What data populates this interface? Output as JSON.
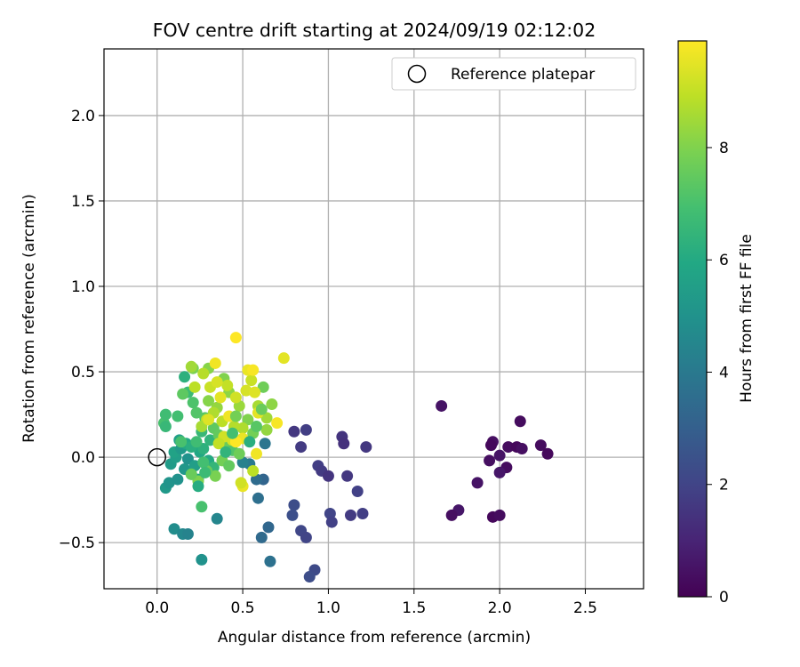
{
  "chart_data": {
    "type": "scatter",
    "title": "FOV centre drift starting at 2024/09/19 02:12:02",
    "xlabel": "Angular distance from reference (arcmin)",
    "ylabel": "Rotation from reference (arcmin)",
    "xlim": [
      -0.31,
      2.84
    ],
    "ylim": [
      -0.77,
      2.39
    ],
    "xticks": [
      0.0,
      0.5,
      1.0,
      1.5,
      2.0,
      2.5
    ],
    "xtick_labels": [
      "0.0",
      "0.5",
      "1.0",
      "1.5",
      "2.0",
      "2.5"
    ],
    "yticks": [
      -0.5,
      0.0,
      0.5,
      1.0,
      1.5,
      2.0
    ],
    "ytick_labels": [
      "−0.5",
      "0.0",
      "0.5",
      "1.0",
      "1.5",
      "2.0"
    ],
    "grid": true,
    "legend": {
      "position": "top-right",
      "label": "Reference platepar",
      "marker": "open-circle"
    },
    "reference_point": {
      "x": 0.0,
      "y": 0.0
    },
    "colorbar": {
      "label": "Hours from first FF file",
      "colormap": "viridis",
      "range": [
        0,
        9.9
      ],
      "ticks": [
        0,
        2,
        4,
        6,
        8
      ],
      "tick_labels": [
        "0",
        "2",
        "4",
        "6",
        "8"
      ]
    },
    "points": [
      {
        "x": 1.66,
        "y": 0.3,
        "t": 0.5
      },
      {
        "x": 2.12,
        "y": 0.21,
        "t": 0.3
      },
      {
        "x": 1.96,
        "y": 0.09,
        "t": 0.4
      },
      {
        "x": 1.95,
        "y": 0.07,
        "t": 0.2
      },
      {
        "x": 2.05,
        "y": 0.06,
        "t": 0.3
      },
      {
        "x": 2.1,
        "y": 0.06,
        "t": 0.2
      },
      {
        "x": 2.13,
        "y": 0.05,
        "t": 0.4
      },
      {
        "x": 2.24,
        "y": 0.07,
        "t": 0.3
      },
      {
        "x": 2.28,
        "y": 0.02,
        "t": 0.2
      },
      {
        "x": 2.0,
        "y": 0.01,
        "t": 0.5
      },
      {
        "x": 1.94,
        "y": -0.02,
        "t": 0.4
      },
      {
        "x": 2.04,
        "y": -0.06,
        "t": 0.3
      },
      {
        "x": 2.0,
        "y": -0.09,
        "t": 0.6
      },
      {
        "x": 1.87,
        "y": -0.15,
        "t": 0.5
      },
      {
        "x": 1.76,
        "y": -0.31,
        "t": 0.6
      },
      {
        "x": 1.72,
        "y": -0.34,
        "t": 0.4
      },
      {
        "x": 1.96,
        "y": -0.35,
        "t": 0.2
      },
      {
        "x": 2.0,
        "y": -0.34,
        "t": 0.3
      },
      {
        "x": 0.8,
        "y": 0.15,
        "t": 1.6
      },
      {
        "x": 0.87,
        "y": 0.16,
        "t": 1.8
      },
      {
        "x": 0.84,
        "y": 0.06,
        "t": 1.7
      },
      {
        "x": 1.08,
        "y": 0.12,
        "t": 1.5
      },
      {
        "x": 1.09,
        "y": 0.08,
        "t": 1.4
      },
      {
        "x": 1.22,
        "y": 0.06,
        "t": 1.6
      },
      {
        "x": 0.94,
        "y": -0.05,
        "t": 1.8
      },
      {
        "x": 0.96,
        "y": -0.08,
        "t": 1.7
      },
      {
        "x": 1.0,
        "y": -0.11,
        "t": 1.5
      },
      {
        "x": 1.11,
        "y": -0.11,
        "t": 1.6
      },
      {
        "x": 1.17,
        "y": -0.2,
        "t": 1.9
      },
      {
        "x": 0.8,
        "y": -0.28,
        "t": 2.3
      },
      {
        "x": 0.79,
        "y": -0.34,
        "t": 2.4
      },
      {
        "x": 1.01,
        "y": -0.33,
        "t": 2.0
      },
      {
        "x": 1.02,
        "y": -0.38,
        "t": 1.9
      },
      {
        "x": 1.13,
        "y": -0.34,
        "t": 1.7
      },
      {
        "x": 1.2,
        "y": -0.33,
        "t": 1.8
      },
      {
        "x": 0.84,
        "y": -0.43,
        "t": 2.1
      },
      {
        "x": 0.87,
        "y": -0.47,
        "t": 2.0
      },
      {
        "x": 0.92,
        "y": -0.66,
        "t": 2.2
      },
      {
        "x": 0.89,
        "y": -0.7,
        "t": 2.3
      },
      {
        "x": 0.62,
        "y": -0.13,
        "t": 3.2
      },
      {
        "x": 0.58,
        "y": -0.13,
        "t": 3.5
      },
      {
        "x": 0.59,
        "y": -0.24,
        "t": 3.6
      },
      {
        "x": 0.65,
        "y": -0.41,
        "t": 3.3
      },
      {
        "x": 0.61,
        "y": -0.47,
        "t": 3.4
      },
      {
        "x": 0.66,
        "y": -0.61,
        "t": 3.7
      },
      {
        "x": 0.63,
        "y": 0.08,
        "t": 3.9
      },
      {
        "x": 0.54,
        "y": -0.04,
        "t": 4.0
      },
      {
        "x": 0.5,
        "y": -0.03,
        "t": 4.3
      },
      {
        "x": 0.35,
        "y": -0.36,
        "t": 4.5
      },
      {
        "x": 0.26,
        "y": -0.6,
        "t": 5.0
      },
      {
        "x": 0.1,
        "y": -0.42,
        "t": 4.8
      },
      {
        "x": 0.15,
        "y": -0.45,
        "t": 4.6
      },
      {
        "x": 0.18,
        "y": -0.45,
        "t": 4.4
      },
      {
        "x": 0.05,
        "y": -0.18,
        "t": 5.3
      },
      {
        "x": 0.07,
        "y": -0.15,
        "t": 5.1
      },
      {
        "x": 0.12,
        "y": -0.13,
        "t": 5.0
      },
      {
        "x": 0.16,
        "y": -0.07,
        "t": 5.2
      },
      {
        "x": 0.08,
        "y": -0.04,
        "t": 5.4
      },
      {
        "x": 0.11,
        "y": 0.0,
        "t": 5.5
      },
      {
        "x": 0.1,
        "y": 0.03,
        "t": 5.7
      },
      {
        "x": 0.14,
        "y": 0.05,
        "t": 5.3
      },
      {
        "x": 0.18,
        "y": -0.01,
        "t": 5.0
      },
      {
        "x": 0.2,
        "y": -0.1,
        "t": 5.6
      },
      {
        "x": 0.24,
        "y": -0.13,
        "t": 5.8
      },
      {
        "x": 0.22,
        "y": -0.05,
        "t": 5.5
      },
      {
        "x": 0.25,
        "y": 0.03,
        "t": 5.9
      },
      {
        "x": 0.13,
        "y": 0.1,
        "t": 5.6
      },
      {
        "x": 0.17,
        "y": 0.08,
        "t": 6.0
      },
      {
        "x": 0.2,
        "y": 0.06,
        "t": 6.2
      },
      {
        "x": 0.27,
        "y": 0.05,
        "t": 6.3
      },
      {
        "x": 0.3,
        "y": -0.02,
        "t": 6.0
      },
      {
        "x": 0.33,
        "y": -0.06,
        "t": 6.5
      },
      {
        "x": 0.31,
        "y": 0.1,
        "t": 6.4
      },
      {
        "x": 0.26,
        "y": 0.15,
        "t": 6.6
      },
      {
        "x": 0.16,
        "y": 0.47,
        "t": 6.3
      },
      {
        "x": 0.18,
        "y": 0.38,
        "t": 6.7
      },
      {
        "x": 0.12,
        "y": 0.24,
        "t": 6.9
      },
      {
        "x": 0.04,
        "y": 0.2,
        "t": 7.0
      },
      {
        "x": 0.05,
        "y": 0.25,
        "t": 6.8
      },
      {
        "x": 0.05,
        "y": 0.18,
        "t": 6.6
      },
      {
        "x": 0.26,
        "y": -0.29,
        "t": 7.0
      },
      {
        "x": 0.23,
        "y": 0.26,
        "t": 7.2
      },
      {
        "x": 0.21,
        "y": 0.32,
        "t": 7.1
      },
      {
        "x": 0.28,
        "y": 0.23,
        "t": 7.3
      },
      {
        "x": 0.33,
        "y": 0.17,
        "t": 7.4
      },
      {
        "x": 0.36,
        "y": 0.13,
        "t": 7.5
      },
      {
        "x": 0.4,
        "y": 0.08,
        "t": 7.6
      },
      {
        "x": 0.44,
        "y": 0.04,
        "t": 7.2
      },
      {
        "x": 0.48,
        "y": 0.02,
        "t": 7.7
      },
      {
        "x": 0.38,
        "y": -0.02,
        "t": 7.8
      },
      {
        "x": 0.42,
        "y": -0.05,
        "t": 7.5
      },
      {
        "x": 0.34,
        "y": -0.11,
        "t": 7.9
      },
      {
        "x": 0.29,
        "y": -0.08,
        "t": 7.6
      },
      {
        "x": 0.24,
        "y": -0.14,
        "t": 8.0
      },
      {
        "x": 0.21,
        "y": 0.52,
        "t": 7.9
      },
      {
        "x": 0.3,
        "y": 0.52,
        "t": 8.1
      },
      {
        "x": 0.39,
        "y": 0.46,
        "t": 8.0
      },
      {
        "x": 0.42,
        "y": 0.38,
        "t": 8.2
      },
      {
        "x": 0.35,
        "y": 0.29,
        "t": 8.3
      },
      {
        "x": 0.3,
        "y": 0.33,
        "t": 8.1
      },
      {
        "x": 0.48,
        "y": 0.3,
        "t": 8.4
      },
      {
        "x": 0.53,
        "y": 0.22,
        "t": 8.0
      },
      {
        "x": 0.56,
        "y": 0.14,
        "t": 7.8
      },
      {
        "x": 0.64,
        "y": 0.16,
        "t": 8.3
      },
      {
        "x": 0.62,
        "y": 0.41,
        "t": 7.7
      },
      {
        "x": 0.67,
        "y": 0.31,
        "t": 8.2
      },
      {
        "x": 0.64,
        "y": 0.23,
        "t": 8.5
      },
      {
        "x": 0.59,
        "y": 0.3,
        "t": 8.6
      },
      {
        "x": 0.5,
        "y": 0.17,
        "t": 8.7
      },
      {
        "x": 0.45,
        "y": 0.18,
        "t": 8.8
      },
      {
        "x": 0.38,
        "y": 0.21,
        "t": 8.9
      },
      {
        "x": 0.33,
        "y": 0.26,
        "t": 8.7
      },
      {
        "x": 0.29,
        "y": 0.22,
        "t": 9.0
      },
      {
        "x": 0.26,
        "y": 0.18,
        "t": 8.6
      },
      {
        "x": 0.22,
        "y": 0.41,
        "t": 8.9
      },
      {
        "x": 0.31,
        "y": 0.41,
        "t": 9.1
      },
      {
        "x": 0.41,
        "y": 0.42,
        "t": 9.0
      },
      {
        "x": 0.46,
        "y": 0.35,
        "t": 9.2
      },
      {
        "x": 0.52,
        "y": 0.39,
        "t": 9.3
      },
      {
        "x": 0.55,
        "y": 0.45,
        "t": 9.1
      },
      {
        "x": 0.57,
        "y": 0.38,
        "t": 9.4
      },
      {
        "x": 0.59,
        "y": 0.26,
        "t": 9.5
      },
      {
        "x": 0.5,
        "y": 0.11,
        "t": 9.6
      },
      {
        "x": 0.44,
        "y": 0.1,
        "t": 9.3
      },
      {
        "x": 0.39,
        "y": 0.12,
        "t": 9.2
      },
      {
        "x": 0.36,
        "y": 0.08,
        "t": 9.0
      },
      {
        "x": 0.3,
        "y": 0.22,
        "t": 9.4
      },
      {
        "x": 0.34,
        "y": 0.55,
        "t": 9.7
      },
      {
        "x": 0.53,
        "y": 0.51,
        "t": 9.6
      },
      {
        "x": 0.56,
        "y": 0.51,
        "t": 9.8
      },
      {
        "x": 0.46,
        "y": 0.7,
        "t": 9.9
      },
      {
        "x": 0.74,
        "y": 0.58,
        "t": 9.5
      },
      {
        "x": 0.7,
        "y": 0.2,
        "t": 9.8
      },
      {
        "x": 0.58,
        "y": 0.02,
        "t": 9.7
      },
      {
        "x": 0.56,
        "y": -0.08,
        "t": 8.9
      },
      {
        "x": 0.5,
        "y": -0.17,
        "t": 9.6
      },
      {
        "x": 0.49,
        "y": -0.15,
        "t": 9.2
      },
      {
        "x": 0.46,
        "y": 0.09,
        "t": 9.9
      },
      {
        "x": 0.42,
        "y": 0.24,
        "t": 9.7
      },
      {
        "x": 0.37,
        "y": 0.35,
        "t": 9.5
      },
      {
        "x": 0.35,
        "y": 0.44,
        "t": 9.3
      },
      {
        "x": 0.27,
        "y": 0.49,
        "t": 8.8
      },
      {
        "x": 0.2,
        "y": 0.53,
        "t": 8.5
      },
      {
        "x": 0.15,
        "y": 0.37,
        "t": 7.4
      },
      {
        "x": 0.14,
        "y": 0.09,
        "t": 7.0
      },
      {
        "x": 0.23,
        "y": 0.09,
        "t": 6.8
      },
      {
        "x": 0.27,
        "y": -0.03,
        "t": 6.9
      },
      {
        "x": 0.2,
        "y": -0.1,
        "t": 7.6
      },
      {
        "x": 0.24,
        "y": -0.17,
        "t": 6.1
      },
      {
        "x": 0.28,
        "y": -0.09,
        "t": 6.7
      },
      {
        "x": 0.4,
        "y": 0.03,
        "t": 6.4
      },
      {
        "x": 0.44,
        "y": 0.14,
        "t": 6.9
      },
      {
        "x": 0.46,
        "y": 0.24,
        "t": 7.8
      },
      {
        "x": 0.61,
        "y": 0.28,
        "t": 7.6
      },
      {
        "x": 0.58,
        "y": 0.18,
        "t": 7.3
      },
      {
        "x": 0.54,
        "y": 0.09,
        "t": 6.2
      }
    ]
  }
}
